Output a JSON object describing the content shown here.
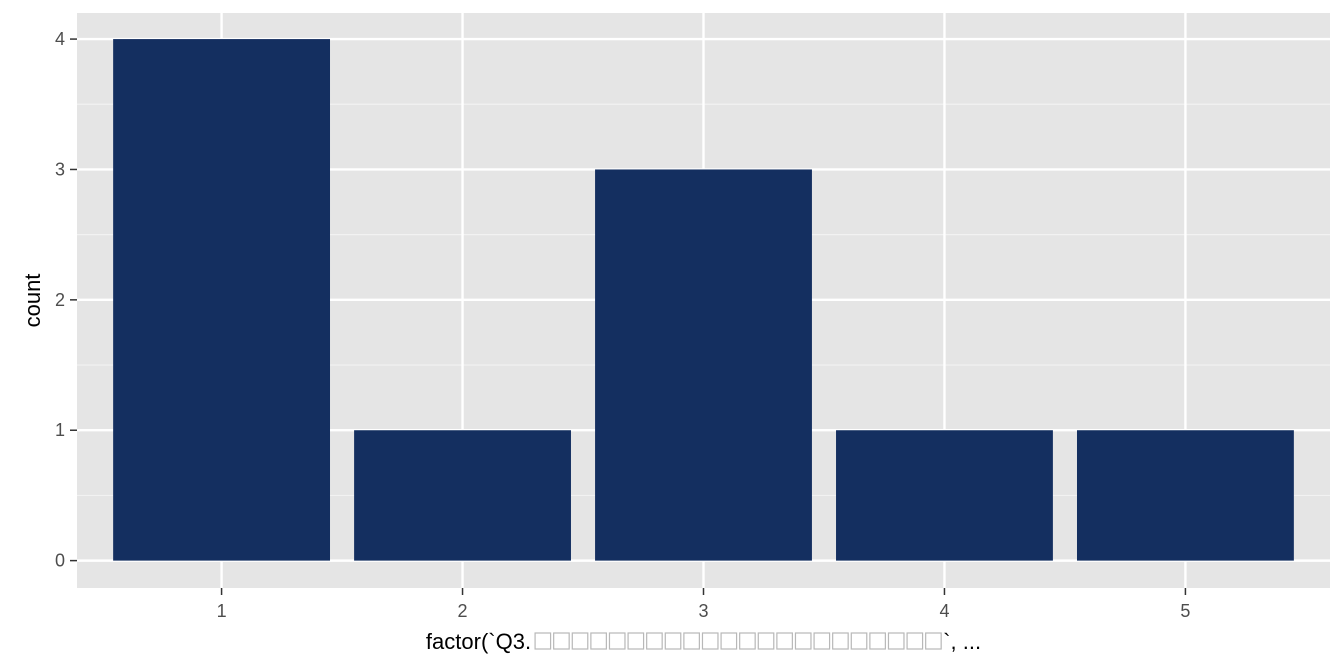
{
  "chart_data": {
    "type": "bar",
    "categories": [
      "1",
      "2",
      "3",
      "4",
      "5"
    ],
    "values": [
      4,
      1,
      3,
      1,
      1
    ],
    "xlabel_prefix": "factor(`Q3. ",
    "xlabel_suffix": "`, ...",
    "xlabel_placeholder_glyph_count": 22,
    "ylabel": "count",
    "ylim": [
      0,
      4.2
    ],
    "yticks": [
      0,
      1,
      2,
      3,
      4
    ],
    "grid": true,
    "colors": {
      "panel_background": "#e5e5e5",
      "grid_major": "#ffffff",
      "grid_minor": "#f2f2f2",
      "bar_fill": "#142f60",
      "tick_text": "#4d4d4d",
      "tick_mark": "#333333"
    }
  }
}
